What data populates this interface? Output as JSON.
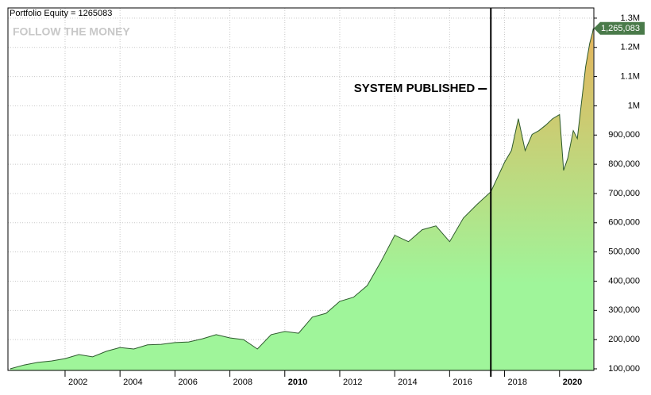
{
  "chart_data": {
    "type": "area",
    "title": "Portfolio Equity = 1265083",
    "watermark": "FOLLOW THE MONEY",
    "x": [
      2000.0,
      2000.5,
      2001.0,
      2001.5,
      2002.0,
      2002.5,
      2003.0,
      2003.5,
      2004.0,
      2004.5,
      2005.0,
      2005.5,
      2006.0,
      2006.5,
      2007.0,
      2007.5,
      2008.0,
      2008.5,
      2009.0,
      2009.5,
      2010.0,
      2010.5,
      2011.0,
      2011.5,
      2012.0,
      2012.5,
      2013.0,
      2013.5,
      2014.0,
      2014.5,
      2015.0,
      2015.5,
      2016.0,
      2016.5,
      2017.0,
      2017.5,
      2018.0,
      2018.25,
      2018.5,
      2018.75,
      2019.0,
      2019.25,
      2019.5,
      2019.75,
      2020.0,
      2020.15,
      2020.3,
      2020.5,
      2020.65,
      2020.8,
      2020.95,
      2021.1,
      2021.2,
      2021.23
    ],
    "series": [
      {
        "name": "Portfolio Equity",
        "color": "#2d5a2d",
        "values": [
          100000,
          113000,
          122000,
          127000,
          135000,
          149000,
          141000,
          160000,
          173000,
          168000,
          182000,
          184000,
          190000,
          192000,
          203000,
          217000,
          206000,
          200000,
          168000,
          217000,
          228000,
          222000,
          277000,
          290000,
          331000,
          345000,
          385000,
          467000,
          557000,
          535000,
          576000,
          589000,
          535000,
          616000,
          663000,
          706000,
          807000,
          847000,
          956000,
          847000,
          902000,
          915000,
          934000,
          956000,
          970000,
          779000,
          820000,
          915000,
          888000,
          1010000,
          1133000,
          1214000,
          1250000,
          1265083
        ]
      }
    ],
    "last_label": {
      "value": 1265083,
      "label": "1,265,083"
    },
    "annotation": {
      "text": "SYSTEM PUBLISHED",
      "x": 2017.5
    },
    "xlim": [
      1999.92,
      2021.25
    ],
    "xticks": [
      2002,
      2004,
      2006,
      2008,
      2010,
      2012,
      2014,
      2016,
      2018,
      2020
    ],
    "xticks_bold": [
      2010,
      2020
    ],
    "ylim": [
      94600,
      1335000
    ],
    "yticks": [
      {
        "value": 100000,
        "label": "100,000"
      },
      {
        "value": 200000,
        "label": "200,000"
      },
      {
        "value": 300000,
        "label": "300,000"
      },
      {
        "value": 400000,
        "label": "400,000"
      },
      {
        "value": 500000,
        "label": "500,000"
      },
      {
        "value": 600000,
        "label": "600,000"
      },
      {
        "value": 700000,
        "label": "700,000"
      },
      {
        "value": 800000,
        "label": "800,000"
      },
      {
        "value": 900000,
        "label": "900,000"
      },
      {
        "value": 1000000,
        "label": "1M"
      },
      {
        "value": 1100000,
        "label": "1.1M"
      },
      {
        "value": 1200000,
        "label": "1.2M"
      },
      {
        "value": 1300000,
        "label": "1.3M"
      }
    ],
    "grid": true,
    "area_colors": [
      "#e6b35a",
      "#9ff59a"
    ]
  }
}
